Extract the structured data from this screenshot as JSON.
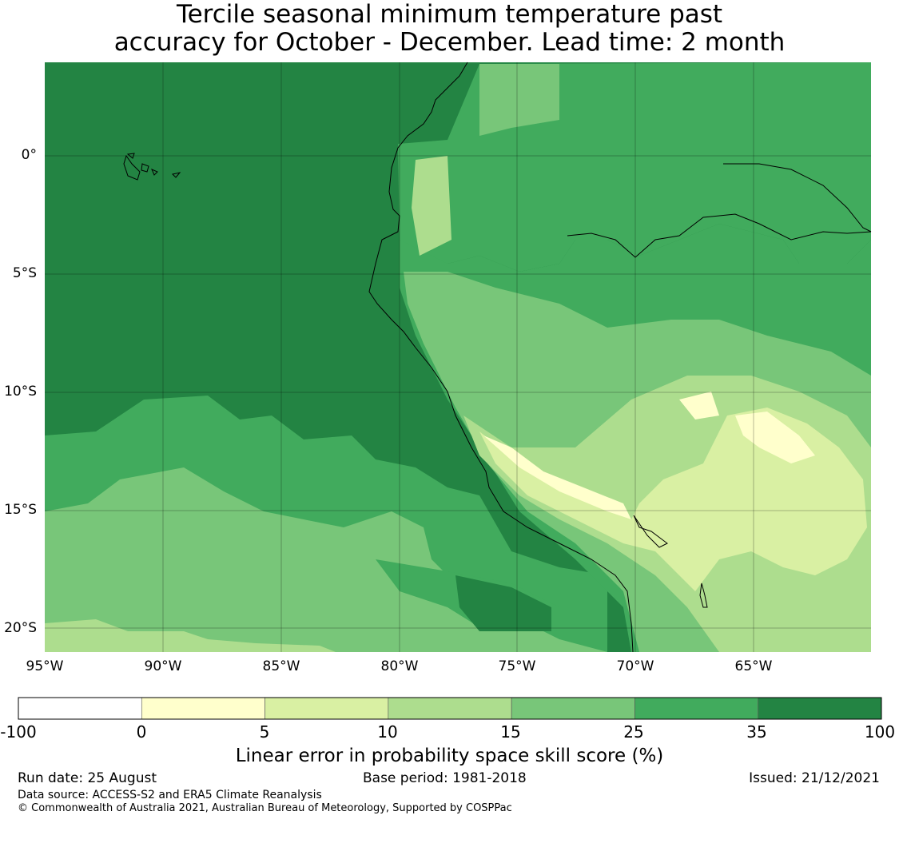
{
  "title_line1": "Tercile seasonal minimum temperature past",
  "title_line2": "accuracy for October - December. Lead time: 2 month",
  "lat_labels": [
    "0°",
    "5°S",
    "10°S",
    "15°S",
    "20°S"
  ],
  "lon_labels": [
    "95°W",
    "90°W",
    "85°W",
    "80°W",
    "75°W",
    "70°W",
    "65°W"
  ],
  "colorbar": {
    "label": "Linear error in probability space skill score (%)",
    "ticks": [
      "-100",
      "0",
      "5",
      "10",
      "15",
      "25",
      "35",
      "100"
    ],
    "colors": [
      "#ffffff",
      "#ffffcc",
      "#d9f0a3",
      "#addd8e",
      "#78c679",
      "#41ab5d",
      "#238443"
    ]
  },
  "footer": {
    "run_date": "Run date: 25 August",
    "base_period": "Base period: 1981-2018",
    "issued": "Issued: 21/12/2021",
    "data_source": "Data source: ACCESS-S2 and ERA5 Climate Reanalysis",
    "copyright": "© Commonwealth of Australia 2021, Australian Bureau of Meteorology, Supported by COSPPac"
  }
}
